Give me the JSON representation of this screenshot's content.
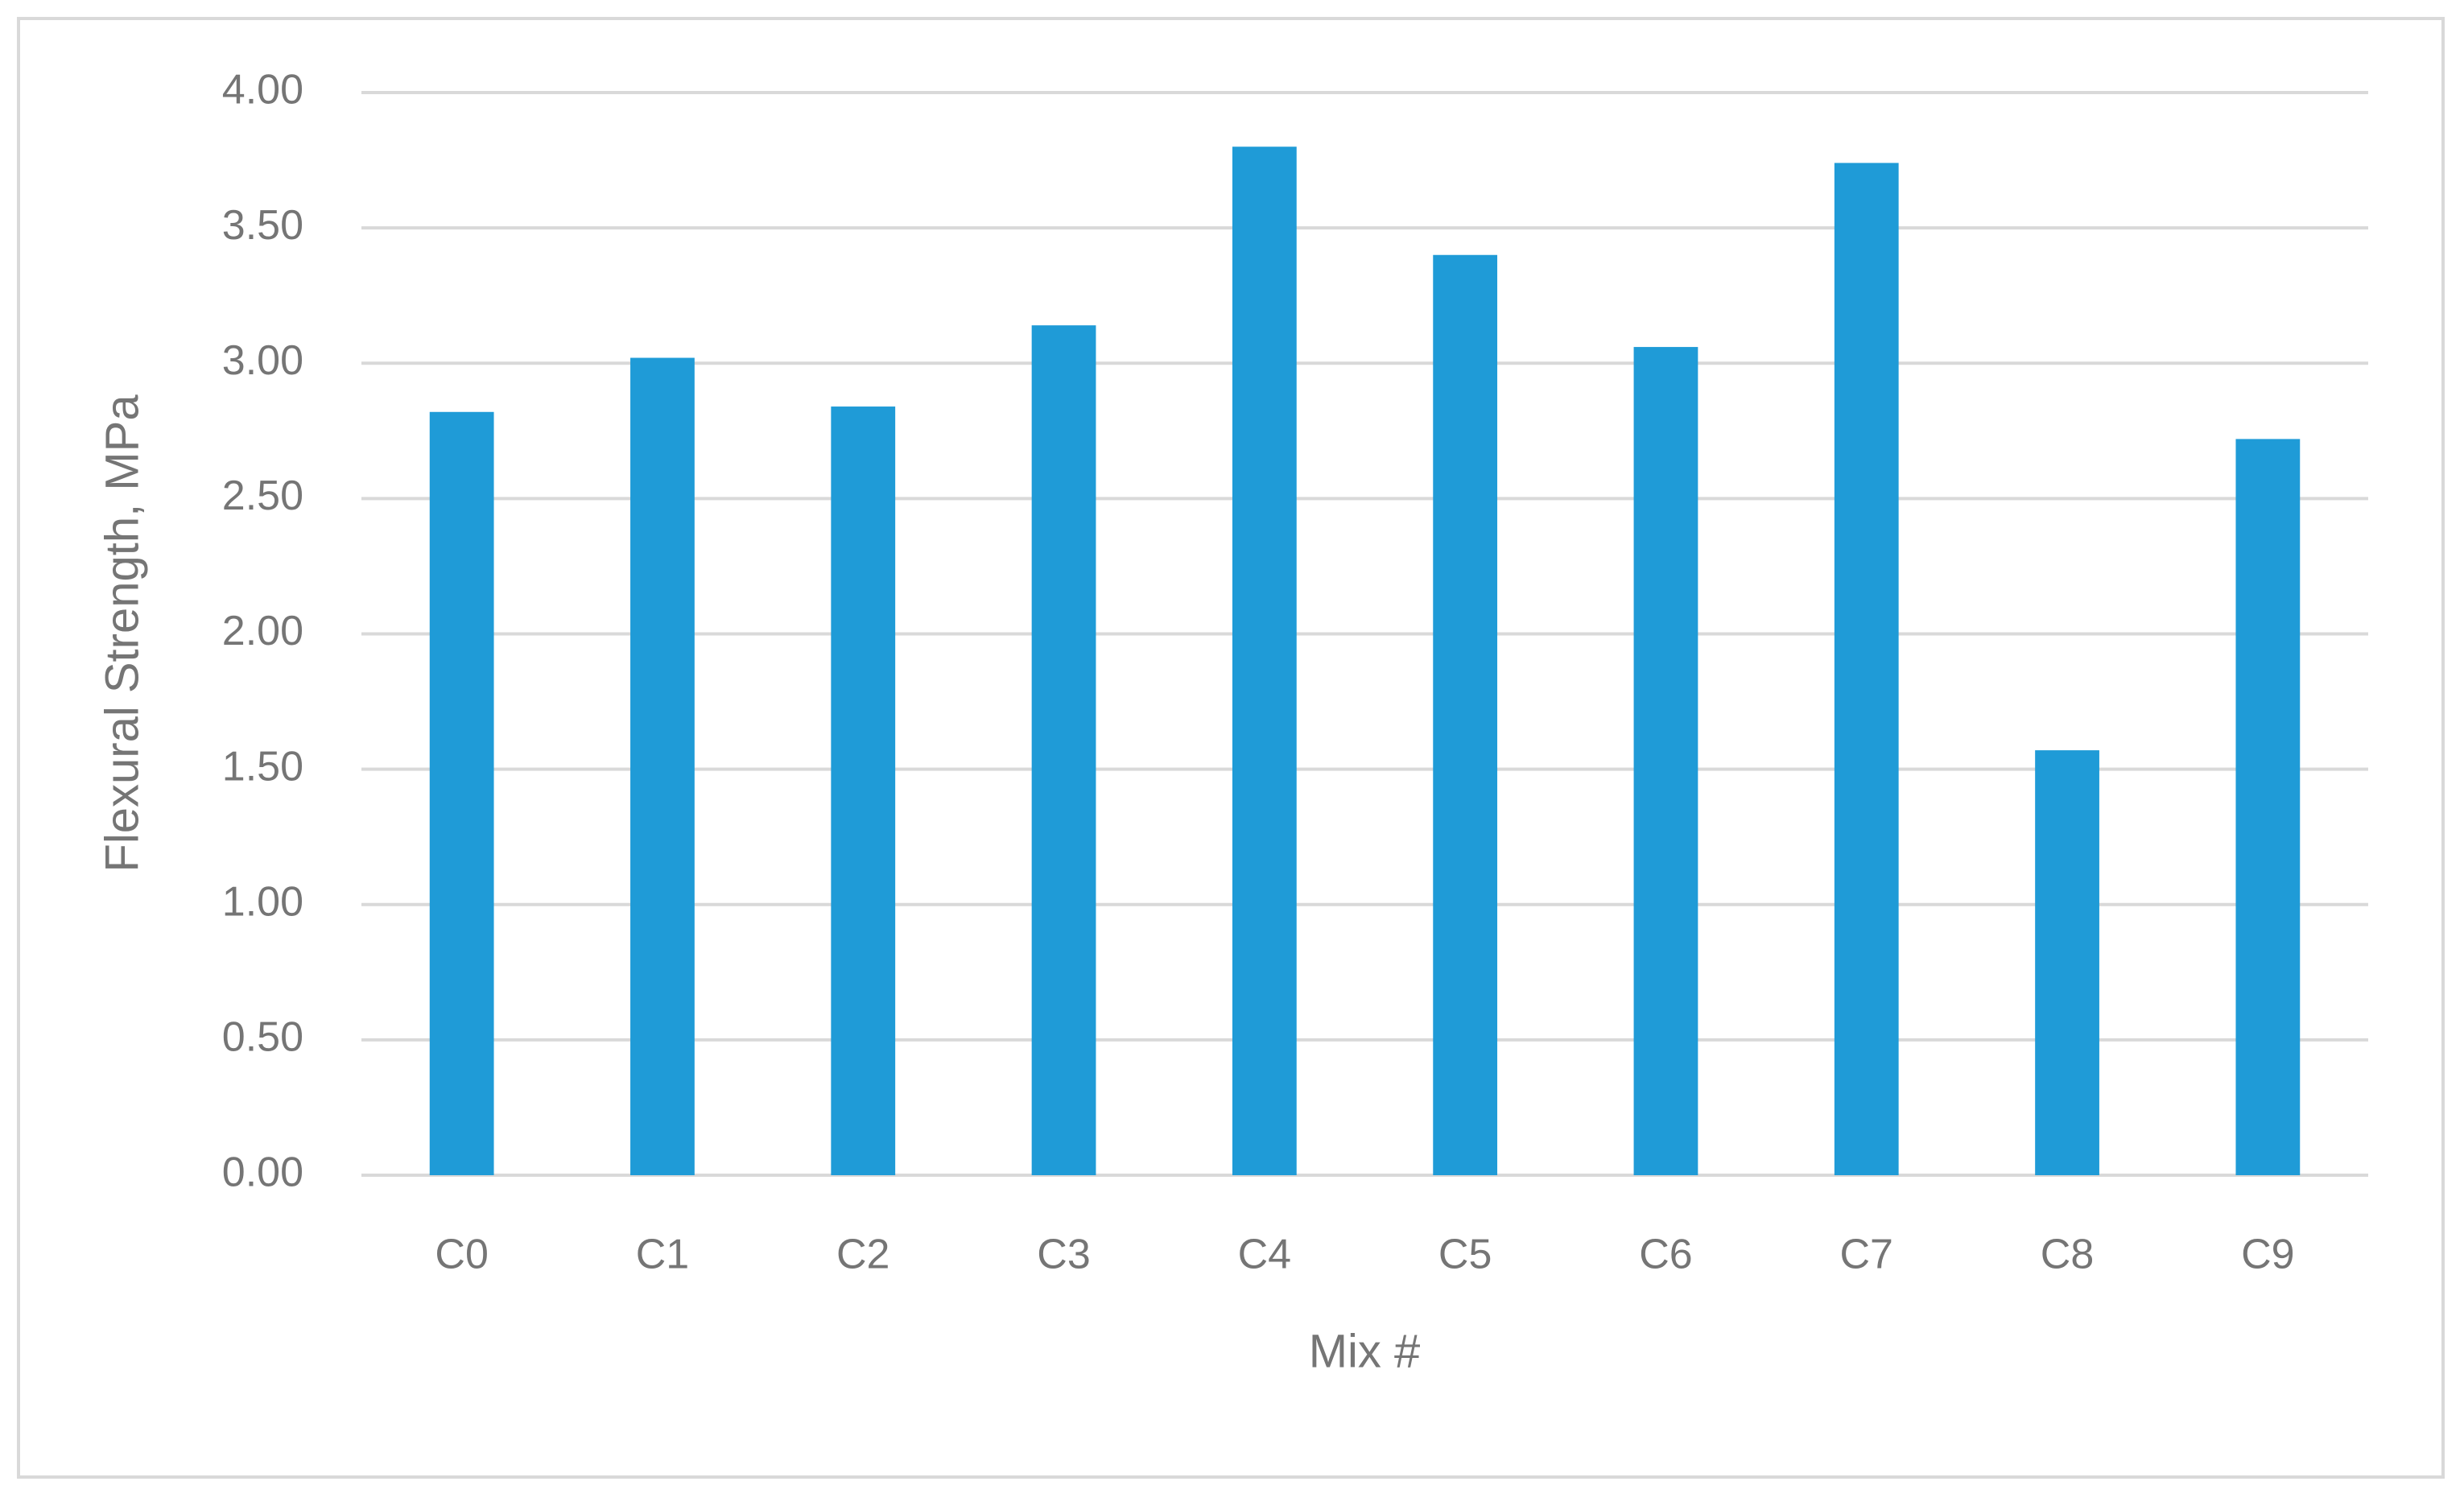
{
  "chart_data": {
    "type": "bar",
    "xlabel": "Mix #",
    "ylabel": "Flexural Strength, MPa",
    "categories": [
      "C0",
      "C1",
      "C2",
      "C3",
      "C4",
      "C5",
      "C6",
      "C7",
      "C8",
      "C9"
    ],
    "values": [
      2.82,
      3.02,
      2.84,
      3.14,
      3.8,
      3.4,
      3.06,
      3.74,
      1.57,
      2.72
    ],
    "color": "#1f9bd7",
    "ylim": [
      0,
      4
    ],
    "yticks": [
      {
        "value": 0,
        "label": "0.00"
      },
      {
        "value": 0.5,
        "label": "0.50"
      },
      {
        "value": 1,
        "label": "1.00"
      },
      {
        "value": 1.5,
        "label": "1.50"
      },
      {
        "value": 2,
        "label": "2.00"
      },
      {
        "value": 2.5,
        "label": "2.50"
      },
      {
        "value": 3,
        "label": "3.00"
      },
      {
        "value": 3.5,
        "label": "3.50"
      },
      {
        "value": 4,
        "label": "4.00"
      }
    ],
    "grid": true
  }
}
